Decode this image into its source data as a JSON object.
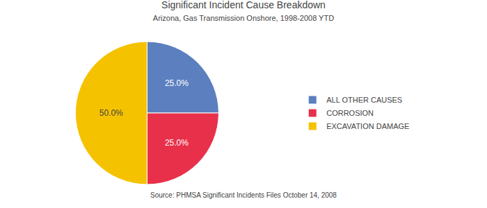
{
  "chart_data": {
    "type": "pie",
    "title": "Significant Incident Cause Breakdown",
    "subtitle": "Arizona, Gas Transmission Onshore, 1998-2008 YTD",
    "annotations": [
      "Source: PHMSA Significant Incidents Files October 14, 2008"
    ],
    "categories": [
      "ALL OTHER CAUSES",
      "CORROSION",
      "EXCAVATION DAMAGE"
    ],
    "values": [
      25.0,
      25.0,
      50.0
    ],
    "value_labels": [
      "25.0%",
      "25.0%",
      "50.0%"
    ],
    "colors": [
      "#5B7FBF",
      "#E8304A",
      "#F5C200"
    ],
    "data_labels": true,
    "legend": "right"
  }
}
